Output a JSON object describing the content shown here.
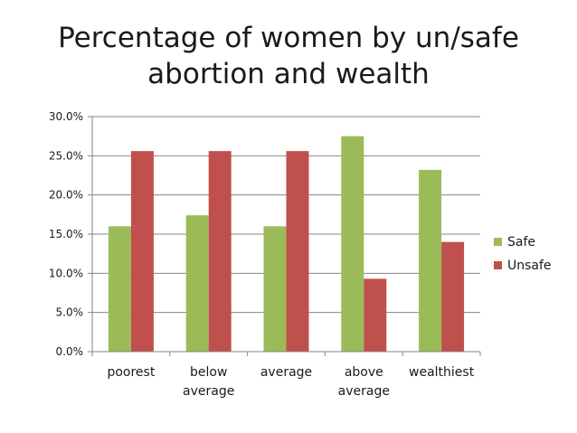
{
  "chart_data": {
    "type": "bar",
    "title_lines": [
      "Percentage of women by un/safe",
      "abortion and wealth"
    ],
    "categories": [
      [
        "poorest"
      ],
      [
        "below",
        "average"
      ],
      [
        "average"
      ],
      [
        "above",
        "average"
      ],
      [
        "wealthiest"
      ]
    ],
    "series": [
      {
        "name": "Safe",
        "color": "#9bbb59",
        "values": [
          16.0,
          17.4,
          16.0,
          27.5,
          23.2
        ]
      },
      {
        "name": "Unsafe",
        "color": "#c0504d",
        "values": [
          25.6,
          25.6,
          25.6,
          9.3,
          14.0
        ]
      }
    ],
    "y_ticks": [
      "0.0%",
      "5.0%",
      "10.0%",
      "15.0%",
      "20.0%",
      "25.0%",
      "30.0%"
    ],
    "ylim": [
      0,
      30
    ],
    "y_step": 5,
    "grid": true,
    "legend_position": "right"
  }
}
